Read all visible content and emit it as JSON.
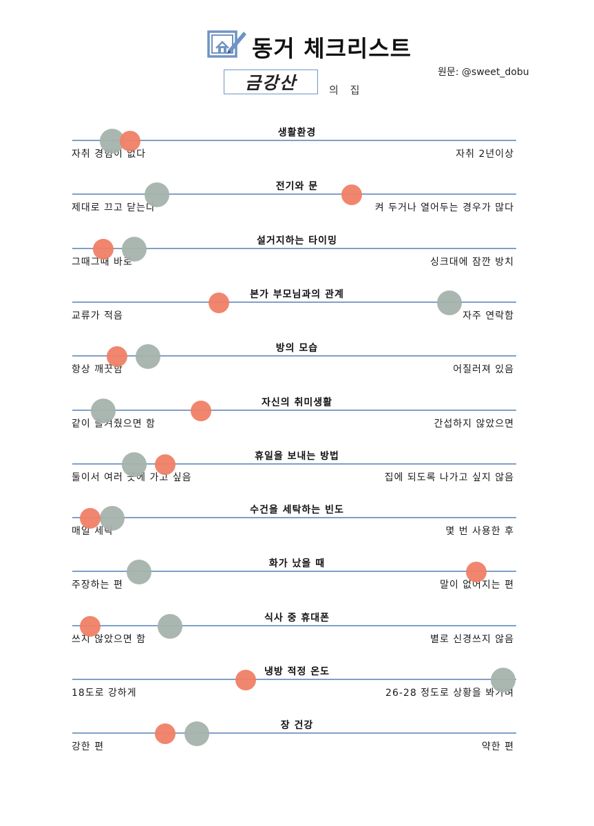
{
  "header": {
    "title": "동거 체크리스트",
    "source": "원문: @sweet_dobu",
    "name": "금강산",
    "name_suffix": "의 집",
    "logo_icon": "house-blueprint-pencil-icon"
  },
  "colors": {
    "line": "#7f9fc6",
    "orange_marker": "#f07f66",
    "gray_marker": "#a5b3ac"
  },
  "items": [
    {
      "title": "생활환경",
      "left": "자취 경험이 없다",
      "right": "자취 2년이상",
      "orange": 0.13,
      "gray": 0.09
    },
    {
      "title": "전기와 문",
      "left": "제대로 끄고 닫는다",
      "right": "켜 두거나 열어두는 경우가 많다",
      "orange": 0.63,
      "gray": 0.19
    },
    {
      "title": "설거지하는 타이밍",
      "left": "그때그때 바로",
      "right": "싱크대에 잠깐 방치",
      "orange": 0.07,
      "gray": 0.14
    },
    {
      "title": "본가 부모님과의 관계",
      "left": "교류가 적음",
      "right": "자주 연락함",
      "orange": 0.33,
      "gray": 0.85
    },
    {
      "title": "방의 모습",
      "left": "항상 깨끗함",
      "right": "어질러져 있음",
      "orange": 0.1,
      "gray": 0.17
    },
    {
      "title": "자신의 취미생활",
      "left": "같이 즐겨줬으면 함",
      "right": "간섭하지 않았으면",
      "orange": 0.29,
      "gray": 0.07
    },
    {
      "title": "휴일을 보내는 방법",
      "left": "둘이서 여러 곳에 가고 싶음",
      "right": "집에 되도록 나가고 싶지 않음",
      "orange": 0.21,
      "gray": 0.14
    },
    {
      "title": "수건을 세탁하는 빈도",
      "left": "매일 세탁",
      "right": "몇 번 사용한 후",
      "orange": 0.04,
      "gray": 0.09
    },
    {
      "title": "화가 났을 때",
      "left": "주장하는 편",
      "right": "말이 없어지는 편",
      "orange": 0.91,
      "gray": 0.15
    },
    {
      "title": "식사 중 휴대폰",
      "left": "쓰지 않았으면 함",
      "right": "별로 신경쓰지 않음",
      "orange": 0.04,
      "gray": 0.22
    },
    {
      "title": "냉방 적정 온도",
      "left": "18도로 강하게",
      "right": "26-28 정도로 상황을 봐가며",
      "orange": 0.39,
      "gray": 0.97
    },
    {
      "title": "장 건강",
      "left": "강한 편",
      "right": "약한 편",
      "orange": 0.21,
      "gray": 0.28
    }
  ]
}
